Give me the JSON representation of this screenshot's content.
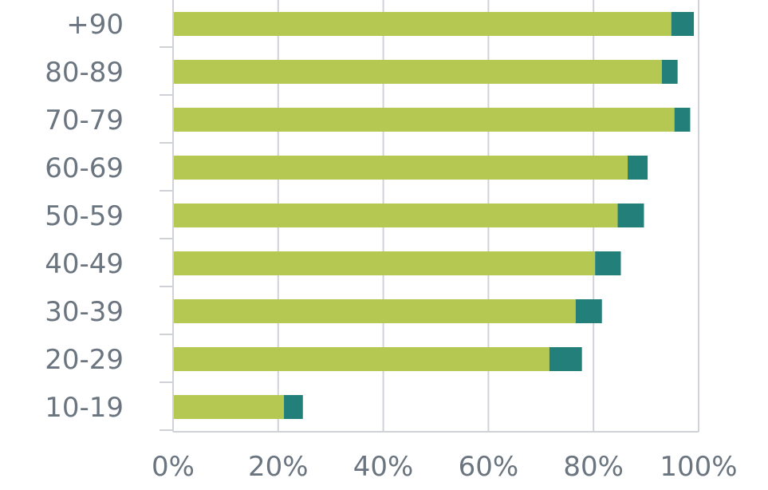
{
  "chart_data": {
    "type": "bar",
    "orientation": "horizontal",
    "stacked": true,
    "categories": [
      "+90",
      "80-89",
      "70-79",
      "60-69",
      "50-59",
      "40-49",
      "30-39",
      "20-29",
      "10-19"
    ],
    "series": [
      {
        "values": [
          94.8,
          93.0,
          95.4,
          86.5,
          84.6,
          80.3,
          76.6,
          71.6,
          21.1
        ],
        "color": "#b5c952"
      },
      {
        "values": [
          4.3,
          3.0,
          3.0,
          3.8,
          5.0,
          4.9,
          5.0,
          6.2,
          3.6
        ],
        "color": "#237f7a"
      }
    ],
    "xlim": [
      0,
      100
    ],
    "xticks": [
      0,
      20,
      40,
      60,
      80,
      100
    ],
    "xtick_labels": [
      "0%",
      "20%",
      "40%",
      "60%",
      "80%",
      "100%"
    ],
    "grid": true,
    "legend": "none",
    "title": "",
    "xlabel": "",
    "ylabel": ""
  },
  "colors": {
    "grid": "#cfd3d8",
    "axis": "#cfd3d8",
    "tick_text": "#6b7580"
  }
}
